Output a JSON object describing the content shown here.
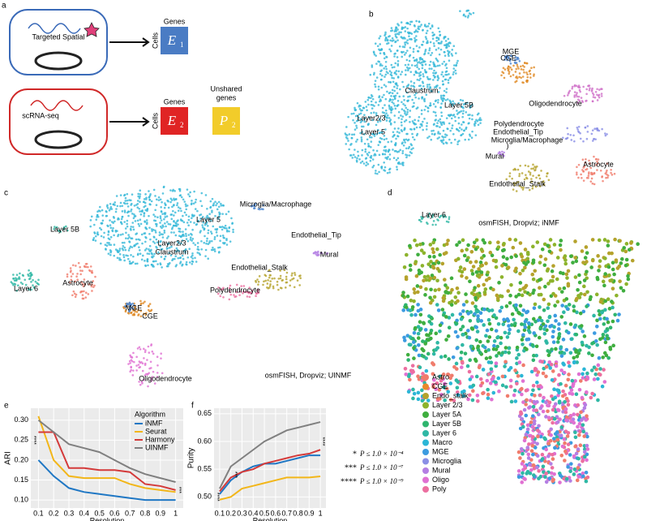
{
  "panel_labels": [
    "a",
    "b",
    "c",
    "d",
    "e",
    "f"
  ],
  "panel_a": {
    "spatial_label": "Targeted Spatial",
    "scrna_label": "scRNA-seq",
    "genes_1": "Genes",
    "cells_1": "Cells",
    "matrix_1": "E",
    "sub_1": "1",
    "genes_2": "Genes",
    "cells_2": "Cells",
    "matrix_2": "E",
    "sub_2": "2",
    "unshared": [
      "Unshared",
      "genes"
    ],
    "matrix_3": "P",
    "sub_3": "2"
  },
  "panel_b": {
    "labels": [
      "Claustrum",
      "Layer 5B",
      "Layer2/3",
      "Layer 5",
      "MGE",
      "CGE",
      "Oligodendrocyte",
      "Polydendrocyte",
      "Endothelial_Tip",
      "Microglia/Macrophage",
      "Mural",
      "Astrocyte",
      "Endothelial_Stalk",
      ")"
    ]
  },
  "panel_c": {
    "labels": [
      "Microglia/Macrophage",
      "Layer 5",
      "Layer2/3",
      "Claustrum",
      "Layer 5B",
      "Endothelial_Tip",
      "Mural",
      "Astrocyte",
      "Layer 6",
      "Endothelial_Stalk",
      "MGE",
      "CGE",
      "Polydendrocyte",
      "Oligodendrocyte"
    ],
    "caption": "osmFISH, Dropviz; UINMF"
  },
  "panel_d": {
    "caption": "osmFISH, Dropviz; iNMF",
    "cluster_label": "Layer 6",
    "legend": [
      {
        "name": "Astro",
        "color": "#f07c6c"
      },
      {
        "name": "CGE",
        "color": "#e88a2a"
      },
      {
        "name": "Endo_stalk",
        "color": "#b5a22c"
      },
      {
        "name": "Layer 2/3",
        "color": "#8db32c"
      },
      {
        "name": "Layer 5A",
        "color": "#3fae3f"
      },
      {
        "name": "Layer 5B",
        "color": "#2fb56e"
      },
      {
        "name": "Layer 6",
        "color": "#2fb8a5"
      },
      {
        "name": "Macro",
        "color": "#2bb6d6"
      },
      {
        "name": "MGE",
        "color": "#3c9be0"
      },
      {
        "name": "Microglia",
        "color": "#8a8fe6"
      },
      {
        "name": "Mural",
        "color": "#b47fe3"
      },
      {
        "name": "Oligo",
        "color": "#e071d2"
      },
      {
        "name": "Poly",
        "color": "#ec6fa0"
      }
    ]
  },
  "significance": [
    {
      "stars": "*",
      "text": "P ≤ 1.0 × 10⁻⁴"
    },
    {
      "stars": "***",
      "text": "P ≤ 1.0 × 10⁻⁷"
    },
    {
      "stars": "****",
      "text": "P ≤ 1.0 × 10⁻⁹"
    }
  ],
  "chart_data": [
    {
      "type": "line",
      "xlabel": "Resolution",
      "ylabel": "ARI",
      "legend_title": "Algorithm",
      "legend": true,
      "x": [
        0.1,
        0.2,
        0.3,
        0.4,
        0.5,
        0.6,
        0.7,
        0.8,
        0.9,
        1
      ],
      "series": [
        {
          "name": "iNMF",
          "color": "#1f77c4",
          "values": [
            0.2,
            0.16,
            0.13,
            0.12,
            0.115,
            0.11,
            0.105,
            0.1,
            0.1,
            0.1
          ]
        },
        {
          "name": "Seurat",
          "color": "#f2b619",
          "values": [
            0.31,
            0.2,
            0.16,
            0.155,
            0.155,
            0.155,
            0.14,
            0.13,
            0.125,
            0.12
          ]
        },
        {
          "name": "Harmony",
          "color": "#d43a3a",
          "values": [
            0.27,
            0.27,
            0.18,
            0.18,
            0.175,
            0.175,
            0.17,
            0.14,
            0.135,
            0.125
          ]
        },
        {
          "name": "UINMF",
          "color": "#808080",
          "values": [
            0.3,
            0.27,
            0.24,
            0.23,
            0.22,
            0.2,
            0.18,
            0.165,
            0.155,
            0.145
          ]
        }
      ],
      "xlim": [
        0.05,
        1.05
      ],
      "xticks": [
        0.1,
        0.2,
        0.3,
        0.4,
        0.5,
        0.6,
        0.7,
        0.8,
        0.9,
        1
      ],
      "ylim": [
        0.08,
        0.33
      ],
      "yticks": [
        {
          "value": 0.1,
          "label": "0.10"
        },
        {
          "value": 0.15,
          "label": "0.15"
        },
        {
          "value": 0.2,
          "label": "0.20"
        },
        {
          "value": 0.25,
          "label": "0.25"
        },
        {
          "value": 0.3,
          "label": "0.30"
        }
      ],
      "annotations": [
        "****",
        "***"
      ]
    },
    {
      "type": "line",
      "xlabel": "Resolution",
      "ylabel": "Purity",
      "legend": false,
      "x": [
        0.1,
        0.2,
        0.3,
        0.4,
        0.5,
        0.6,
        0.7,
        0.8,
        0.9,
        1
      ],
      "series": [
        {
          "name": "iNMF",
          "color": "#1f77c4",
          "values": [
            0.505,
            0.53,
            0.545,
            0.555,
            0.56,
            0.56,
            0.565,
            0.57,
            0.575,
            0.575
          ]
        },
        {
          "name": "Seurat",
          "color": "#f2b619",
          "values": [
            0.495,
            0.5,
            0.515,
            0.52,
            0.525,
            0.53,
            0.535,
            0.535,
            0.535,
            0.537
          ]
        },
        {
          "name": "Harmony",
          "color": "#d43a3a",
          "values": [
            0.51,
            0.535,
            0.545,
            0.55,
            0.56,
            0.565,
            0.57,
            0.575,
            0.578,
            0.585
          ]
        },
        {
          "name": "UINMF",
          "color": "#808080",
          "values": [
            0.515,
            0.555,
            0.57,
            0.585,
            0.6,
            0.61,
            0.62,
            0.625,
            0.63,
            0.635
          ]
        }
      ],
      "xlim": [
        0.05,
        1.05
      ],
      "xticks": [
        0.1,
        0.2,
        0.3,
        0.4,
        0.5,
        0.6,
        0.7,
        0.8,
        0.9,
        1
      ],
      "ylim": [
        0.48,
        0.66
      ],
      "yticks": [
        {
          "value": 0.5,
          "label": "0.50"
        },
        {
          "value": 0.55,
          "label": "0.55"
        },
        {
          "value": 0.6,
          "label": "0.60"
        },
        {
          "value": 0.65,
          "label": "0.65"
        }
      ],
      "annotations": [
        "****",
        "***",
        "****"
      ]
    }
  ]
}
